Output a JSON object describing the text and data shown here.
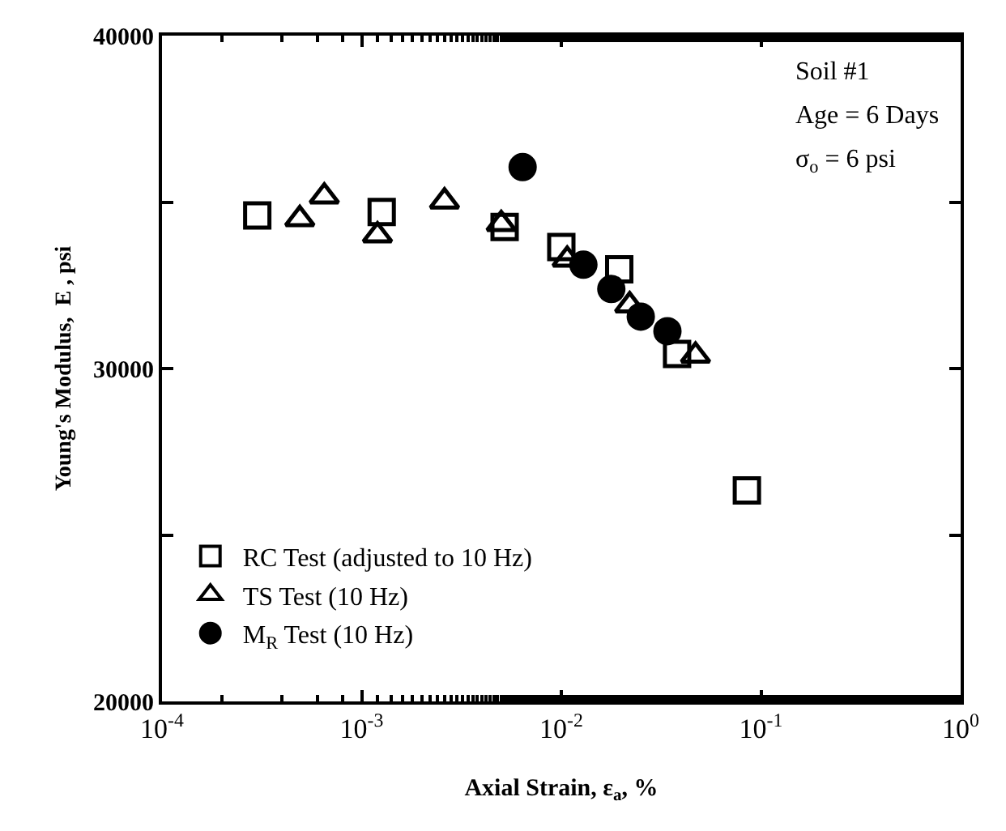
{
  "chart_data": {
    "type": "scatter",
    "xlabel": "Axial Strain, ε$_{a}$, %",
    "ylabel": "Young's Modulus,  E , psi",
    "log": "x",
    "xlim": [
      0.0001,
      1
    ],
    "xticks": [
      {
        "value": 0.0001,
        "label": "10$^{-4}$"
      },
      {
        "value": 0.001,
        "label": "10$^{-3}$"
      },
      {
        "value": 0.01,
        "label": "10$^{-2}$"
      },
      {
        "value": 0.1,
        "label": "10$^{-1}$"
      },
      {
        "value": 1,
        "label": "10$^{0}$"
      }
    ],
    "ylim": [
      20000,
      40000
    ],
    "yticks": [
      20000,
      {
        "value": 25000,
        "label": null
      },
      30000,
      {
        "value": 35000,
        "label": null
      },
      40000
    ],
    "grid": false,
    "legend": "bottom left",
    "annotations": [
      "Soil #1",
      "Age = 6 Days",
      "σ$_{o}$ = 6 psi"
    ],
    "series": [
      {
        "name": "RC Test (adjusted to 10 Hz)",
        "color": "#000000",
        "marker": "square",
        "x": [
          0.0003,
          0.00126,
          0.0052,
          0.01,
          0.0195,
          0.038,
          0.085
        ],
        "values": [
          34600,
          34700,
          34250,
          33650,
          32980,
          30440,
          26340
        ]
      },
      {
        "name": "TS Test (10 Hz)",
        "color": "#000000",
        "marker": "triangle",
        "x": [
          0.00049,
          0.00065,
          0.0012,
          0.0026,
          0.005,
          0.0107,
          0.022,
          0.047
        ],
        "values": [
          34490,
          35170,
          34000,
          35020,
          34340,
          33270,
          31900,
          30390
        ]
      },
      {
        "name": "M$_{R}$ Test (10 Hz)",
        "color": "#000000",
        "marker": "circle",
        "x": [
          0.0064,
          0.0129,
          0.0178,
          0.025,
          0.034
        ],
        "values": [
          36050,
          33120,
          32390,
          31560,
          31120
        ]
      }
    ]
  }
}
